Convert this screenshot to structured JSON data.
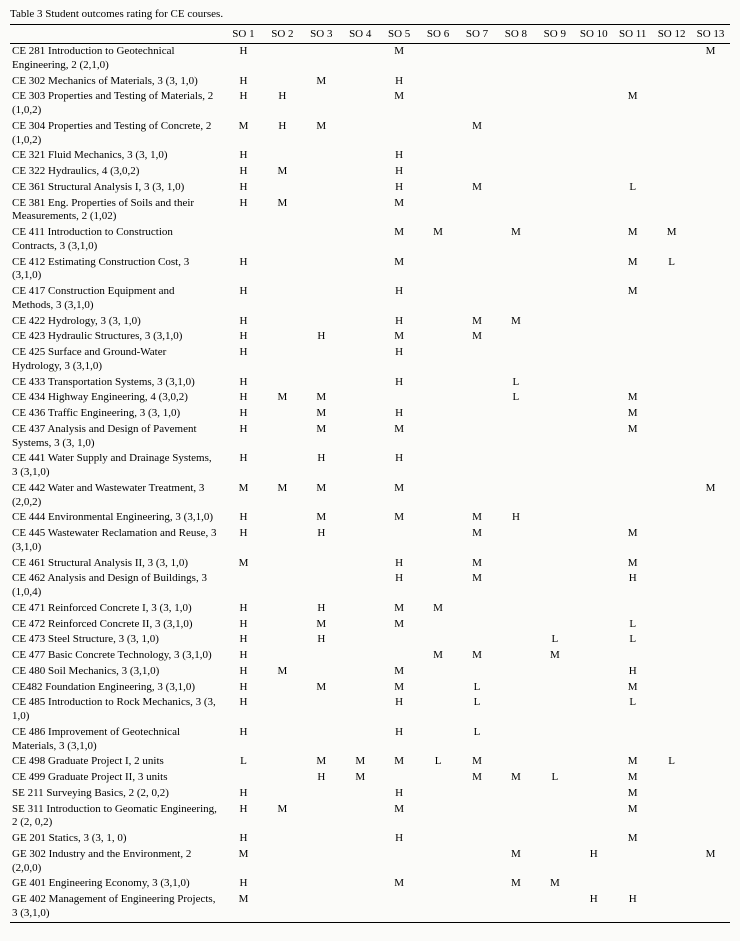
{
  "caption": "Table 3    Student outcomes rating for CE courses.",
  "columns": [
    "SO 1",
    "SO 2",
    "SO 3",
    "SO 4",
    "SO 5",
    "SO 6",
    "SO 7",
    "SO 8",
    "SO 9",
    "SO 10",
    "SO 11",
    "SO 12",
    "SO 13"
  ],
  "rows": [
    {
      "name": "CE 281 Introduction to Geotechnical Engineering, 2 (2,1,0)",
      "v": [
        "H",
        "",
        "",
        "",
        "M",
        "",
        "",
        "",
        "",
        "",
        "",
        "",
        "M"
      ]
    },
    {
      "name": "CE 302 Mechanics of Materials, 3 (3, 1,0)",
      "v": [
        "H",
        "",
        "M",
        "",
        "H",
        "",
        "",
        "",
        "",
        "",
        "",
        "",
        ""
      ]
    },
    {
      "name": "CE 303 Properties and Testing of Materials, 2 (1,0,2)",
      "v": [
        "H",
        "H",
        "",
        "",
        "M",
        "",
        "",
        "",
        "",
        "",
        "M",
        "",
        ""
      ]
    },
    {
      "name": "CE 304 Properties and Testing of Concrete, 2 (1,0,2)",
      "v": [
        "M",
        "H",
        "M",
        "",
        "",
        "",
        "M",
        "",
        "",
        "",
        "",
        "",
        ""
      ]
    },
    {
      "name": "CE 321 Fluid Mechanics, 3 (3, 1,0)",
      "v": [
        "H",
        "",
        "",
        "",
        "H",
        "",
        "",
        "",
        "",
        "",
        "",
        "",
        ""
      ]
    },
    {
      "name": "CE 322 Hydraulics, 4 (3,0,2)",
      "v": [
        "H",
        "M",
        "",
        "",
        "H",
        "",
        "",
        "",
        "",
        "",
        "",
        "",
        ""
      ]
    },
    {
      "name": "CE 361 Structural Analysis I, 3 (3, 1,0)",
      "v": [
        "H",
        "",
        "",
        "",
        "H",
        "",
        "M",
        "",
        "",
        "",
        "L",
        "",
        ""
      ]
    },
    {
      "name": "CE 381 Eng. Properties of Soils and their Measurements, 2 (1,02)",
      "v": [
        "H",
        "M",
        "",
        "",
        "M",
        "",
        "",
        "",
        "",
        "",
        "",
        "",
        ""
      ]
    },
    {
      "name": "CE 411 Introduction to Construction Contracts, 3 (3,1,0)",
      "v": [
        "",
        "",
        "",
        "",
        "M",
        "M",
        "",
        "M",
        "",
        "",
        "M",
        "M",
        ""
      ]
    },
    {
      "name": "CE 412 Estimating Construction Cost, 3 (3,1,0)",
      "v": [
        "H",
        "",
        "",
        "",
        "M",
        "",
        "",
        "",
        "",
        "",
        "M",
        "L",
        ""
      ]
    },
    {
      "name": "CE 417 Construction Equipment and Methods, 3 (3,1,0)",
      "v": [
        "H",
        "",
        "",
        "",
        "H",
        "",
        "",
        "",
        "",
        "",
        "M",
        "",
        ""
      ]
    },
    {
      "name": "CE 422 Hydrology, 3 (3, 1,0)",
      "v": [
        "H",
        "",
        "",
        "",
        "H",
        "",
        "M",
        "M",
        "",
        "",
        "",
        "",
        ""
      ]
    },
    {
      "name": "CE 423 Hydraulic Structures, 3 (3,1,0)",
      "v": [
        "H",
        "",
        "H",
        "",
        "M",
        "",
        "M",
        "",
        "",
        "",
        "",
        "",
        ""
      ]
    },
    {
      "name": "CE 425 Surface and Ground-Water Hydrology, 3 (3,1,0)",
      "v": [
        "H",
        "",
        "",
        "",
        "H",
        "",
        "",
        "",
        "",
        "",
        "",
        "",
        ""
      ]
    },
    {
      "name": "CE 433 Transportation Systems, 3 (3,1,0)",
      "v": [
        "H",
        "",
        "",
        "",
        "H",
        "",
        "",
        "L",
        "",
        "",
        "",
        "",
        ""
      ]
    },
    {
      "name": "CE 434 Highway Engineering, 4 (3,0,2)",
      "v": [
        "H",
        "M",
        "M",
        "",
        "",
        "",
        "",
        "L",
        "",
        "",
        "M",
        "",
        ""
      ]
    },
    {
      "name": "CE 436 Traffic Engineering, 3 (3, 1,0)",
      "v": [
        "H",
        "",
        "M",
        "",
        "H",
        "",
        "",
        "",
        "",
        "",
        "M",
        "",
        ""
      ]
    },
    {
      "name": "CE 437 Analysis and Design of Pavement Systems, 3 (3, 1,0)",
      "v": [
        "H",
        "",
        "M",
        "",
        "M",
        "",
        "",
        "",
        "",
        "",
        "M",
        "",
        ""
      ]
    },
    {
      "name": "CE 441 Water Supply and Drainage Systems, 3 (3,1,0)",
      "v": [
        "H",
        "",
        "H",
        "",
        "H",
        "",
        "",
        "",
        "",
        "",
        "",
        "",
        ""
      ]
    },
    {
      "name": "CE 442 Water and Wastewater Treatment, 3 (2,0,2)",
      "v": [
        "M",
        "M",
        "M",
        "",
        "M",
        "",
        "",
        "",
        "",
        "",
        "",
        "",
        "M"
      ]
    },
    {
      "name": "CE 444 Environmental Engineering, 3 (3,1,0)",
      "v": [
        "H",
        "",
        "M",
        "",
        "M",
        "",
        "M",
        "H",
        "",
        "",
        "",
        "",
        ""
      ]
    },
    {
      "name": "CE 445 Wastewater Reclamation and Reuse, 3 (3,1,0)",
      "v": [
        "H",
        "",
        "H",
        "",
        "",
        "",
        "M",
        "",
        "",
        "",
        "M",
        "",
        ""
      ]
    },
    {
      "name": "CE 461 Structural Analysis II, 3 (3, 1,0)",
      "v": [
        "M",
        "",
        "",
        "",
        "H",
        "",
        "M",
        "",
        "",
        "",
        "M",
        "",
        ""
      ]
    },
    {
      "name": "CE 462 Analysis and Design of Buildings, 3 (1,0,4)",
      "v": [
        "",
        "",
        "",
        "",
        "H",
        "",
        "M",
        "",
        "",
        "",
        "H",
        "",
        ""
      ]
    },
    {
      "name": "CE 471 Reinforced Concrete I, 3 (3, 1,0)",
      "v": [
        "H",
        "",
        "H",
        "",
        "M",
        "M",
        "",
        "",
        "",
        "",
        "",
        "",
        ""
      ]
    },
    {
      "name": "CE 472 Reinforced Concrete II, 3 (3,1,0)",
      "v": [
        "H",
        "",
        "M",
        "",
        "M",
        "",
        "",
        "",
        "",
        "",
        "L",
        "",
        ""
      ]
    },
    {
      "name": "CE 473 Steel Structure, 3 (3, 1,0)",
      "v": [
        "H",
        "",
        "H",
        "",
        "",
        "",
        "",
        "",
        "L",
        "",
        "L",
        "",
        ""
      ]
    },
    {
      "name": "CE 477 Basic Concrete Technology, 3 (3,1,0)",
      "v": [
        "H",
        "",
        "",
        "",
        "",
        "M",
        "M",
        "",
        "M",
        "",
        "",
        "",
        ""
      ]
    },
    {
      "name": "CE 480 Soil Mechanics, 3 (3,1,0)",
      "v": [
        "H",
        "M",
        "",
        "",
        "M",
        "",
        "",
        "",
        "",
        "",
        "H",
        "",
        ""
      ]
    },
    {
      "name": "CE482 Foundation Engineering, 3 (3,1,0)",
      "v": [
        "H",
        "",
        "M",
        "",
        "M",
        "",
        "L",
        "",
        "",
        "",
        "M",
        "",
        ""
      ]
    },
    {
      "name": "CE 485 Introduction to Rock Mechanics, 3 (3, 1,0)",
      "v": [
        "H",
        "",
        "",
        "",
        "H",
        "",
        "L",
        "",
        "",
        "",
        "L",
        "",
        ""
      ]
    },
    {
      "name": "CE 486 Improvement of Geotechnical Materials, 3 (3,1,0)",
      "v": [
        "H",
        "",
        "",
        "",
        "H",
        "",
        "L",
        "",
        "",
        "",
        "",
        "",
        ""
      ]
    },
    {
      "name": "CE 498 Graduate Project I, 2 units",
      "v": [
        "L",
        "",
        "M",
        "M",
        "M",
        "L",
        "M",
        "",
        "",
        "",
        "M",
        "L",
        ""
      ]
    },
    {
      "name": "CE 499 Graduate Project II, 3 units",
      "v": [
        "",
        "",
        "H",
        "M",
        "",
        "",
        "M",
        "M",
        "L",
        "",
        "M",
        "",
        ""
      ]
    },
    {
      "name": "SE 211 Surveying Basics, 2 (2, 0,2)",
      "v": [
        "H",
        "",
        "",
        "",
        "H",
        "",
        "",
        "",
        "",
        "",
        "M",
        "",
        ""
      ]
    },
    {
      "name": "SE 311 Introduction to Geomatic Engineering, 2 (2, 0,2)",
      "v": [
        "H",
        "M",
        "",
        "",
        "M",
        "",
        "",
        "",
        "",
        "",
        "M",
        "",
        ""
      ]
    },
    {
      "name": "GE 201 Statics, 3 (3, 1, 0)",
      "v": [
        "H",
        "",
        "",
        "",
        "H",
        "",
        "",
        "",
        "",
        "",
        "M",
        "",
        ""
      ]
    },
    {
      "name": "GE 302 Industry and the Environment, 2 (2,0,0)",
      "v": [
        "M",
        "",
        "",
        "",
        "",
        "",
        "",
        "M",
        "",
        "H",
        "",
        "",
        "M"
      ]
    },
    {
      "name": "GE 401 Engineering Economy, 3 (3,1,0)",
      "v": [
        "H",
        "",
        "",
        "",
        "M",
        "",
        "",
        "M",
        "M",
        "",
        "",
        "",
        ""
      ]
    },
    {
      "name": "GE 402 Management of Engineering Projects, 3 (3,1,0)",
      "v": [
        "M",
        "",
        "",
        "",
        "",
        "",
        "",
        "",
        "",
        "H",
        "H",
        "",
        ""
      ]
    }
  ]
}
